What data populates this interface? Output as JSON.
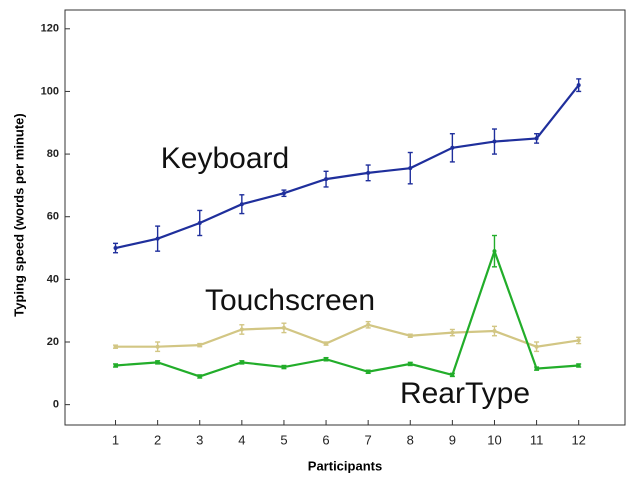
{
  "chart_data": {
    "type": "line",
    "x_label": "Participants",
    "y_label": "Typing speed (words per minute)",
    "x": [
      1,
      2,
      3,
      4,
      5,
      6,
      7,
      8,
      9,
      10,
      11,
      12
    ],
    "xlim": [
      -0.2,
      13.1
    ],
    "xticks": [
      1,
      2,
      3,
      4,
      5,
      6,
      7,
      8,
      9,
      10,
      11,
      12
    ],
    "ylim": [
      -6.5,
      126
    ],
    "yticks": [
      0,
      20,
      40,
      60,
      80,
      100,
      120
    ],
    "series": [
      {
        "name": "Keyboard",
        "color": "#1f2f9c",
        "values": [
          50,
          53,
          58,
          64,
          67.5,
          72,
          74,
          75.5,
          82,
          84,
          85,
          102
        ],
        "errors": [
          1.5,
          4,
          4,
          3,
          1,
          2.5,
          2.5,
          5,
          4.5,
          4,
          1.5,
          2
        ]
      },
      {
        "name": "Touchscreen",
        "color": "#d2c684",
        "values": [
          18.5,
          18.5,
          19,
          24,
          24.5,
          19.5,
          25.5,
          22,
          23,
          23.5,
          18.5,
          20.5
        ],
        "errors": [
          0.5,
          1.5,
          0.5,
          1.5,
          1.5,
          0.5,
          1,
          0.5,
          1,
          1.5,
          1.5,
          1
        ]
      },
      {
        "name": "RearType",
        "color": "#22ad2a",
        "values": [
          12.5,
          13.5,
          9,
          13.5,
          12,
          14.5,
          10.5,
          13,
          9.5,
          49,
          11.5,
          12.5
        ],
        "errors": [
          0.5,
          0.5,
          0.5,
          0.5,
          0.5,
          0.5,
          0.5,
          0.5,
          0.5,
          5,
          0.5,
          0.5
        ]
      }
    ]
  }
}
